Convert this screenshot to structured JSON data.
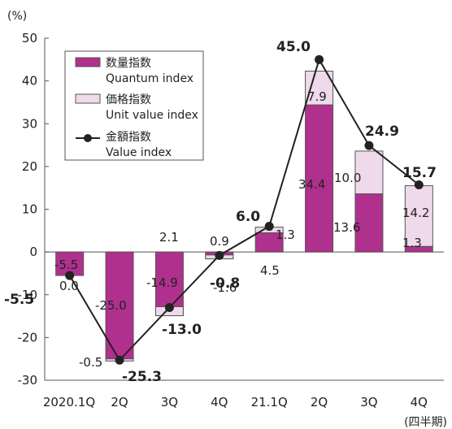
{
  "chart_data": {
    "type": "bar",
    "y_unit_label": "(%)",
    "x_unit_label": "(四半期)",
    "categories": [
      "2020.1Q",
      "2Q",
      "3Q",
      "4Q",
      "21.1Q",
      "2Q",
      "3Q",
      "4Q"
    ],
    "ylim": [
      -30,
      50
    ],
    "yticks": [
      -30,
      -20,
      -10,
      0,
      10,
      20,
      30,
      40,
      50
    ],
    "grid": false,
    "legend_position": "top-left",
    "legend": [
      {
        "key": "quantum",
        "jp": "数量指数",
        "en": "Quantum index"
      },
      {
        "key": "unit",
        "jp": "価格指数",
        "en": "Unit value index"
      },
      {
        "key": "value",
        "jp": "金額指数",
        "en": "Value index"
      }
    ],
    "series": [
      {
        "key": "quantum",
        "type": "stacked-bar",
        "color": "#b0308e",
        "values": [
          -5.5,
          -25.0,
          -14.9,
          -1.6,
          4.5,
          34.4,
          13.6,
          1.3
        ],
        "labels": [
          "-5.5",
          "-25.0",
          "-14.9",
          "-1.6",
          "4.5",
          "34.4",
          "13.6",
          "1.3"
        ]
      },
      {
        "key": "unit",
        "type": "stacked-bar",
        "color": "#eedaea",
        "values": [
          0.0,
          -0.5,
          2.1,
          0.9,
          1.3,
          7.9,
          10.0,
          14.2
        ],
        "labels": [
          "0.0",
          "-0.5",
          "2.1",
          "0.9",
          "1.3",
          "7.9",
          "10.0",
          "14.2"
        ]
      },
      {
        "key": "value",
        "type": "line",
        "color": "#222222",
        "values": [
          -5.5,
          -25.3,
          -13.0,
          -0.8,
          6.0,
          45.0,
          24.9,
          15.7
        ],
        "labels": [
          "-5.5",
          "-25.3",
          "-13.0",
          "-0.8",
          "6.0",
          "45.0",
          "24.9",
          "15.7"
        ]
      }
    ]
  }
}
